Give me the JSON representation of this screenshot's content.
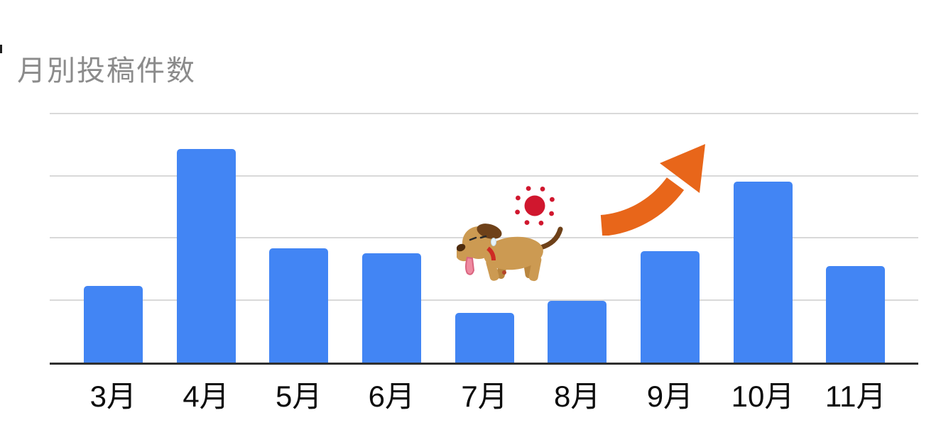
{
  "page": {
    "background": "#ffffff"
  },
  "title": {
    "text": "月別投稿件数",
    "color": "#8b8b8b"
  },
  "chart_data": {
    "type": "bar",
    "title": "月別投稿件数",
    "categories": [
      "3月",
      "4月",
      "5月",
      "6月",
      "7月",
      "8月",
      "9月",
      "10月",
      "11月"
    ],
    "values": [
      31,
      86,
      46,
      44,
      20,
      25,
      45,
      73,
      39
    ],
    "xlabel": "",
    "ylabel": "",
    "ylim": [
      0,
      100
    ],
    "y_axis_tick_labels_visible": false,
    "gridlines": {
      "visible": true,
      "interval": 25,
      "color": "#d9d9d9"
    },
    "bar_color": "#4285f4",
    "axis_color": "#2f2f2f",
    "x_label_color": "#0c0c0c",
    "legend_position": "none"
  },
  "decorations": {
    "sun_icon": {
      "color": "#d0172e"
    },
    "rising_arrow_icon": {
      "color": "#e8661a"
    },
    "tired_dog_illustration": {
      "body_color": "#cc9a52",
      "dark_brown": "#6e4119",
      "leg_shade": "#b9863f",
      "collar_color": "#ce2a24",
      "tongue_color": "#ef8aa0",
      "nose_color": "#4f2c0d"
    }
  }
}
